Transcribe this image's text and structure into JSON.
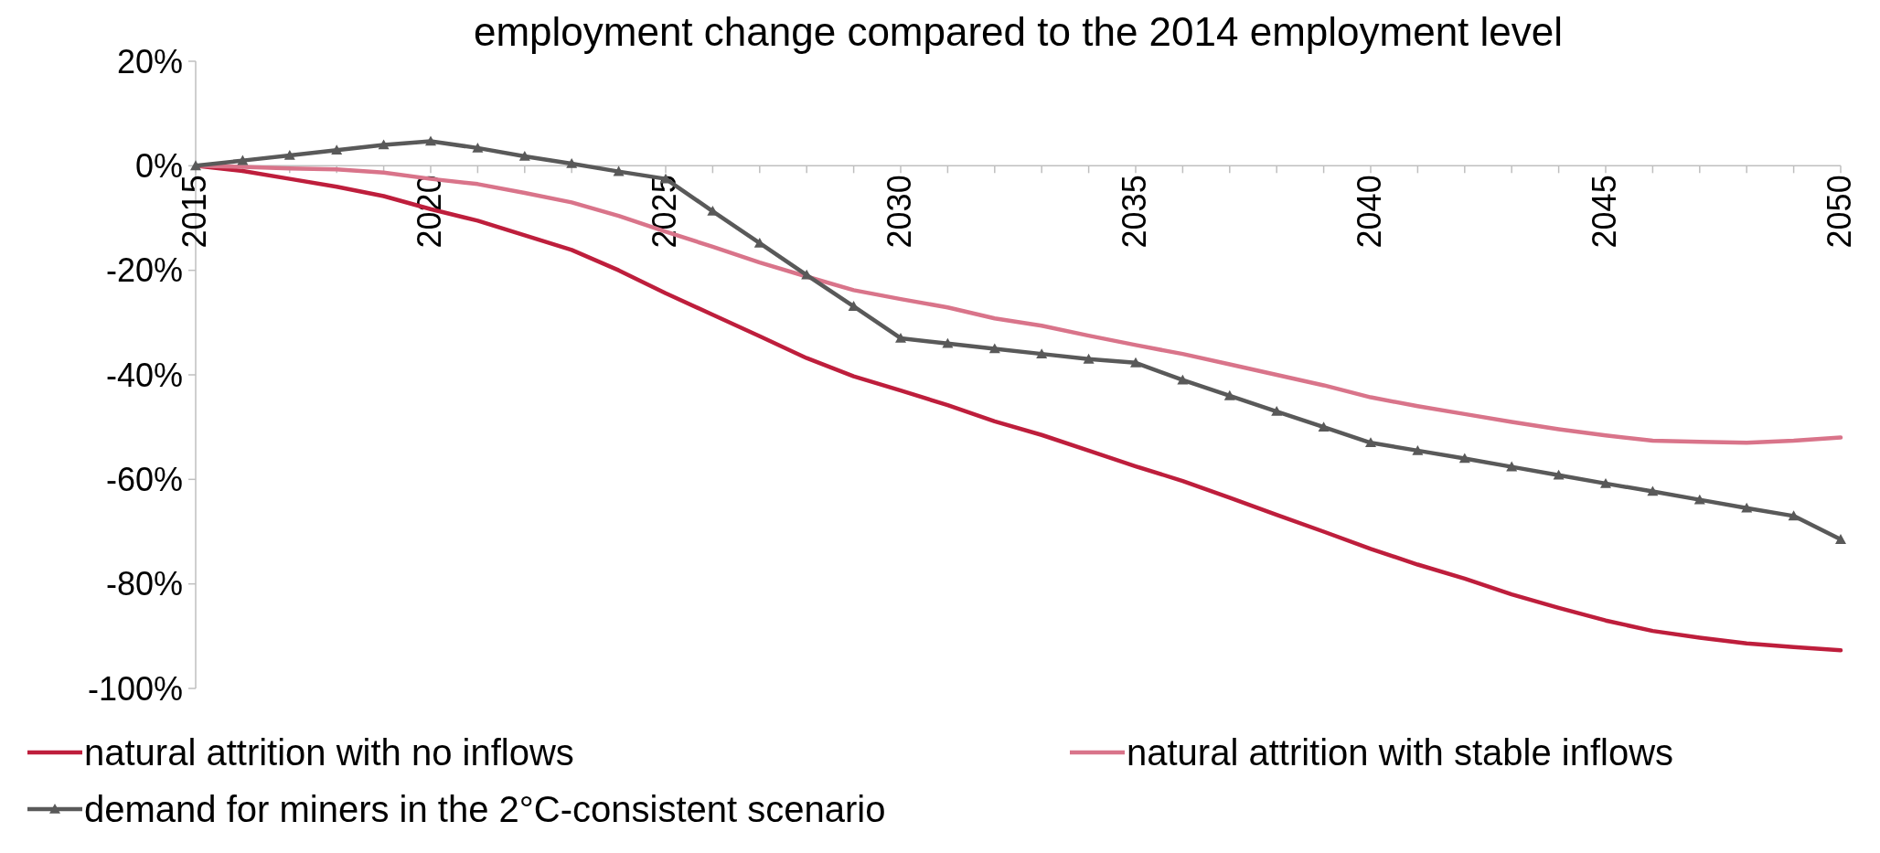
{
  "chart_data": {
    "type": "line",
    "title": "employment change compared to the 2014 employment level",
    "x": [
      2015,
      2016,
      2017,
      2018,
      2019,
      2020,
      2021,
      2022,
      2023,
      2024,
      2025,
      2026,
      2027,
      2028,
      2029,
      2030,
      2031,
      2032,
      2033,
      2034,
      2035,
      2036,
      2037,
      2038,
      2039,
      2040,
      2041,
      2042,
      2043,
      2044,
      2045,
      2046,
      2047,
      2048,
      2049,
      2050
    ],
    "xlim": [
      2015,
      2050
    ],
    "xticks": [
      2015,
      2020,
      2025,
      2030,
      2035,
      2040,
      2045,
      2050
    ],
    "ylim": [
      -100,
      20
    ],
    "yticks": [
      {
        "value": 20,
        "label": "20%"
      },
      {
        "value": 0,
        "label": "0%"
      },
      {
        "value": -20,
        "label": "-20%"
      },
      {
        "value": -40,
        "label": "-40%"
      },
      {
        "value": -60,
        "label": "-60%"
      },
      {
        "value": -80,
        "label": "-80%"
      },
      {
        "value": -100,
        "label": "-100%"
      }
    ],
    "grid": false,
    "legend": "bottom",
    "series": [
      {
        "name": "natural attrition with no inflows",
        "color": "#be1e3c",
        "marker": "none",
        "values": [
          0,
          -1,
          -2.5,
          -4,
          -5.8,
          -8.3,
          -10.5,
          -13.3,
          -16.1,
          -20,
          -24.4,
          -28.5,
          -32.6,
          -36.8,
          -40.3,
          -43,
          -45.8,
          -48.9,
          -51.5,
          -54.5,
          -57.5,
          -60.3,
          -63.5,
          -66.8,
          -70,
          -73.3,
          -76.3,
          -79,
          -82,
          -84.6,
          -87,
          -89,
          -90.3,
          -91.4,
          -92.1,
          -92.7
        ]
      },
      {
        "name": "natural attrition with stable inflows",
        "color": "#d9748a",
        "marker": "none",
        "values": [
          0,
          -0.2,
          -0.5,
          -0.7,
          -1.3,
          -2.5,
          -3.5,
          -5.2,
          -7,
          -9.6,
          -12.6,
          -15.5,
          -18.5,
          -21.2,
          -23.8,
          -25.5,
          -27.1,
          -29.2,
          -30.6,
          -32.5,
          -34.3,
          -36,
          -38,
          -40,
          -42,
          -44.3,
          -46,
          -47.5,
          -49,
          -50.4,
          -51.6,
          -52.6,
          -52.8,
          -53,
          -52.6,
          -52
        ]
      },
      {
        "name": "demand for miners in the 2°C-consistent scenario",
        "color": "#595959",
        "marker": "triangle",
        "values": [
          0,
          1,
          2,
          3,
          4,
          4.7,
          3.4,
          1.8,
          0.4,
          -1.1,
          -2.5,
          -8.7,
          -14.8,
          -20.9,
          -26.9,
          -33,
          -34,
          -35,
          -36,
          -37,
          -37.7,
          -41,
          -44,
          -47,
          -50,
          -53,
          -54.5,
          -56,
          -57.6,
          -59.2,
          -60.8,
          -62.3,
          -63.9,
          -65.5,
          -67,
          -71.5
        ]
      }
    ]
  }
}
